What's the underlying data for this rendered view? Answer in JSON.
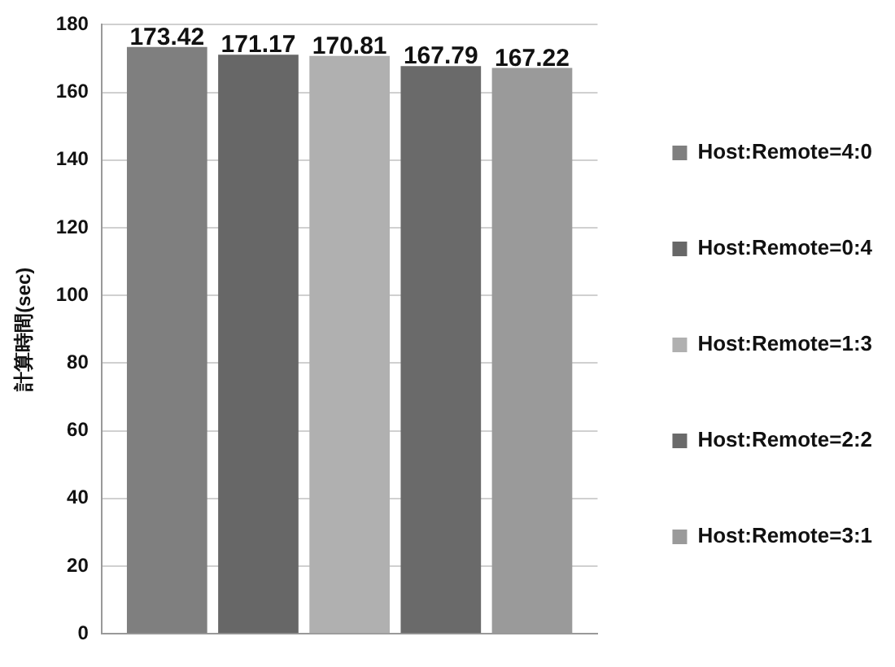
{
  "chart_data": {
    "type": "bar",
    "ylabel": "計算時間(sec)",
    "categories": [
      null
    ],
    "series": [
      {
        "name": "Host:Remote=4:0",
        "color": "#7f7f7f",
        "values": [
          173.42
        ]
      },
      {
        "name": "Host:Remote=0:4",
        "color": "#676767",
        "values": [
          171.17
        ]
      },
      {
        "name": "Host:Remote=1:3",
        "color": "#b0b0b0",
        "values": [
          170.81
        ]
      },
      {
        "name": "Host:Remote=2:2",
        "color": "#6a6a6a",
        "values": [
          167.79
        ]
      },
      {
        "name": "Host:Remote=3:1",
        "color": "#9a9a9a",
        "values": [
          167.22
        ]
      }
    ],
    "ylim": [
      0,
      180
    ],
    "yticks": [
      0,
      20,
      40,
      60,
      80,
      100,
      120,
      140,
      160,
      180
    ],
    "grid": "y",
    "legend": "right",
    "data_labels": true
  }
}
